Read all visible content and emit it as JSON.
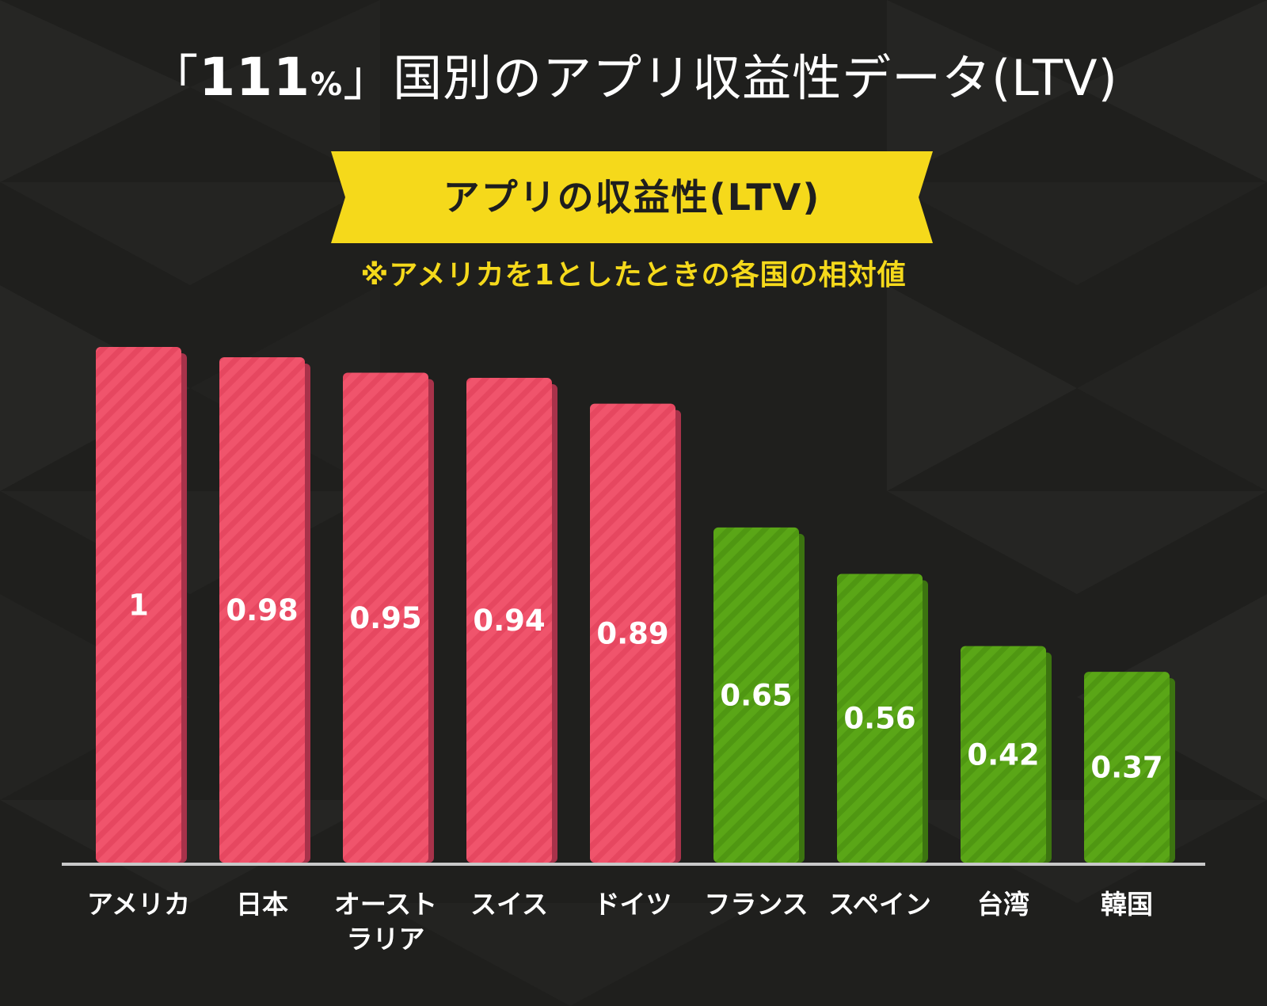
{
  "title": {
    "open_bracket": "「",
    "number": "111",
    "percent": "%",
    "close_bracket": "」",
    "text": "国別のアプリ収益性データ(LTV)"
  },
  "ribbon_label": "アプリの収益性(LTV)",
  "subtitle": "※アメリカを1としたときの各国の相対値",
  "colors": {
    "background": "#1f1f1d",
    "red_bar": "#f0546c",
    "red_bar_side": "#a8324a",
    "green_bar": "#5aa617",
    "green_bar_side": "#3c7410",
    "ribbon": "#f5d91b",
    "subtitle": "#f5d91b",
    "baseline": "#c8c8c8"
  },
  "chart_data": {
    "type": "bar",
    "title": "アプリの収益性(LTV)",
    "subtitle": "※アメリカを1としたときの各国の相対値",
    "categories": [
      "アメリカ",
      "日本",
      "オーストラリア",
      "スイス",
      "ドイツ",
      "フランス",
      "スペイン",
      "台湾",
      "韓国"
    ],
    "values": [
      1,
      0.98,
      0.95,
      0.94,
      0.89,
      0.65,
      0.56,
      0.42,
      0.37
    ],
    "value_labels": [
      "1",
      "0.98",
      "0.95",
      "0.94",
      "0.89",
      "0.65",
      "0.56",
      "0.42",
      "0.37"
    ],
    "bar_colors": [
      "red",
      "red",
      "red",
      "red",
      "red",
      "green",
      "green",
      "green",
      "green"
    ],
    "ylim": [
      0,
      1
    ],
    "xlabel": "",
    "ylabel": "",
    "grid": false
  },
  "x_labels": {
    "usa": "アメリカ",
    "japan": "日本",
    "australia_line1": "オースト",
    "australia_line2": "ラリア",
    "switzerland": "スイス",
    "germany": "ドイツ",
    "france": "フランス",
    "spain": "スペイン",
    "taiwan": "台湾",
    "korea": "韓国"
  }
}
